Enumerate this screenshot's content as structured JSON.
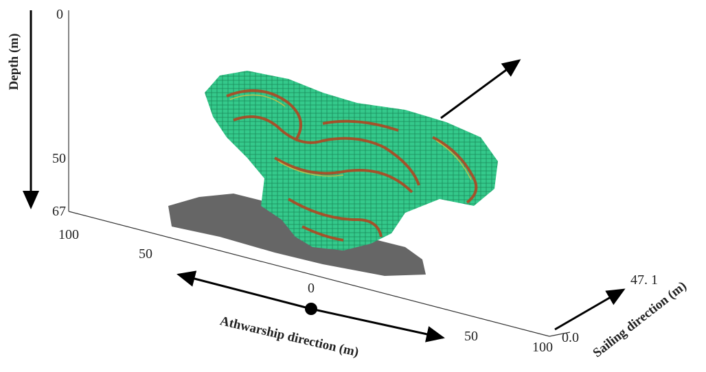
{
  "depth_axis": {
    "label": "Depth (m)",
    "ticks": [
      "0",
      "50",
      "67"
    ]
  },
  "athwartship_axis": {
    "label": "Athwarship direction (m)",
    "ticks": [
      "100",
      "50",
      "0",
      "50",
      "100"
    ]
  },
  "sailing_axis": {
    "label": "Sailing direction (m)",
    "ticks": [
      "0.0",
      "47. 1"
    ]
  }
}
